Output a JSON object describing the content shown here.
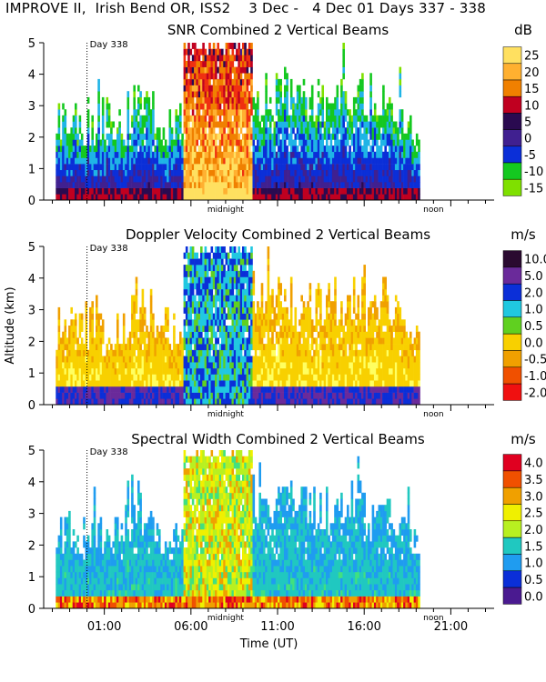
{
  "header": "IMPROVE II,  Irish Bend OR, ISS2    3 Dec -   4 Dec 01 Days 337 - 338",
  "colors": {
    "snr": [
      "#7fe000",
      "#14c820",
      "#1fb4e6",
      "#0b2fd8",
      "#402090",
      "#2a0a50",
      "#c00020",
      "#f03010",
      "#f08000",
      "#ffb030",
      "#ffe060"
    ],
    "doppler": [
      "#f01010",
      "#f05000",
      "#f0a000",
      "#f8d000",
      "#ffff60",
      "#60d020",
      "#20c8e0",
      "#0b2fd8",
      "#6a2a9a",
      "#2a0a30"
    ],
    "width": [
      "#4a1a90",
      "#0b2fd8",
      "#1f9cf0",
      "#20c8c0",
      "#40e080",
      "#b8f020",
      "#f0f000",
      "#f0a000",
      "#f05000",
      "#e00020"
    ]
  },
  "chart_data": [
    {
      "type": "heatmap",
      "title": "SNR Combined 2 Vertical Beams",
      "unit": "dB",
      "xlim": [
        -2.5,
        23.5
      ],
      "ylim": [
        0,
        5
      ],
      "yticks": [
        "0",
        "1",
        "2",
        "3",
        "4",
        "5"
      ],
      "colorbar_labels": [
        "25",
        "20",
        "15",
        "10",
        "5",
        "0",
        "-5",
        "-10",
        "-15"
      ],
      "colorbar_values": [
        25,
        20,
        15,
        10,
        5,
        0,
        -5,
        -10,
        -15
      ],
      "annotations": {
        "day": "Day 338",
        "midnight": "midnight",
        "noon": "noon"
      }
    },
    {
      "type": "heatmap",
      "title": "Doppler Velocity Combined 2 Vertical Beams",
      "unit": "m/s",
      "ylabel": "Altitude (km)",
      "xlim": [
        -2.5,
        23.5
      ],
      "ylim": [
        0,
        5
      ],
      "yticks": [
        "0",
        "1",
        "2",
        "3",
        "4",
        "5"
      ],
      "colorbar_labels": [
        "10.0",
        "5.0",
        "2.0",
        "1.0",
        "0.5",
        "0.0",
        "-0.5",
        "-1.0",
        "-2.0"
      ],
      "colorbar_values": [
        10.0,
        5.0,
        2.0,
        1.0,
        0.5,
        0.0,
        -0.5,
        -1.0,
        -2.0
      ],
      "annotations": {
        "day": "Day 338",
        "midnight": "midnight",
        "noon": "noon"
      }
    },
    {
      "type": "heatmap",
      "title": "Spectral Width Combined 2 Vertical Beams",
      "unit": "m/s",
      "xlabel": "Time (UT)",
      "xlim": [
        -2.5,
        23.5
      ],
      "ylim": [
        0,
        5
      ],
      "yticks": [
        "0",
        "1",
        "2",
        "3",
        "4",
        "5"
      ],
      "xticks": [
        "01:00",
        "06:00",
        "11:00",
        "16:00",
        "21:00"
      ],
      "colorbar_labels": [
        "4.0",
        "3.5",
        "3.0",
        "2.5",
        "2.0",
        "1.5",
        "1.0",
        "0.5",
        "0.0"
      ],
      "colorbar_values": [
        4.0,
        3.5,
        3.0,
        2.5,
        2.0,
        1.5,
        1.0,
        0.5,
        0.0
      ],
      "annotations": {
        "day": "Day 338",
        "midnight": "midnight",
        "noon": "noon"
      }
    }
  ]
}
